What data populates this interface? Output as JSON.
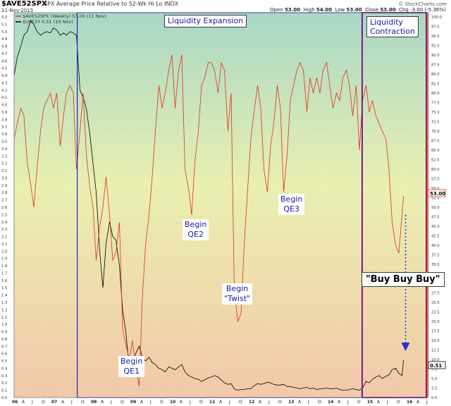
{
  "header": {
    "ticker": "$AVE52SPX",
    "description": "SPX Average Price Relative to 52-Wk Hi Lo INDX",
    "date": "11-Nov-2015",
    "open_label": "Open",
    "open": "53.00",
    "high_label": "High",
    "high": "54.00",
    "low_label": "Low",
    "low": "53.00",
    "close_label": "Close",
    "close": "53.00",
    "chg_label": "Chg",
    "chg": "-3.00 (-5.36%)",
    "credit": "© StockCharts.com"
  },
  "legend": {
    "series1": "$AVE52SPX (Weekly) 53.00 (11 Nov)",
    "series2": "$UST1Y 0.51 (10 Nov)"
  },
  "annotations": {
    "expansion": "Liquidity Expansion",
    "contraction_line1": "Liquidity",
    "contraction_line2": "Contraction",
    "buy": "\"Buy Buy Buy\"",
    "qe1_l1": "Begin",
    "qe1_l2": "QE1",
    "qe2_l1": "Begin",
    "qe2_l2": "QE2",
    "twist_l1": "Begin",
    "twist_l2": "\"Twist\"",
    "qe3_l1": "Begin",
    "qe3_l2": "QE3"
  },
  "price_labels": {
    "red": "53.00",
    "black": "0.51"
  },
  "colors": {
    "ave52spx": "#e0301e",
    "ust1y": "#000000",
    "expansion_border": "#2222cc",
    "contraction_border": "#7a1a8a",
    "right_border": "#e02020",
    "arrow": "#2233cc"
  },
  "chart_data": {
    "type": "line",
    "x_ticks": [
      "06",
      "A",
      "J",
      "O",
      "07",
      "A",
      "J",
      "O",
      "08",
      "A",
      "J",
      "O",
      "09",
      "A",
      "J",
      "O",
      "10",
      "A",
      "J",
      "O",
      "11",
      "A",
      "J",
      "O",
      "12",
      "A",
      "J",
      "O",
      "13",
      "A",
      "J",
      "O",
      "14",
      "A",
      "J",
      "O",
      "15",
      "A",
      "J",
      "O",
      "16",
      "A",
      "J"
    ],
    "left_axis": {
      "min": 0,
      "max": 5.2,
      "step": 0.1
    },
    "right_axis": {
      "min": 0,
      "max": 100,
      "step": 2.5
    },
    "series": [
      {
        "name": "$AVE52SPX (Weekly)",
        "axis": "right",
        "points": [
          [
            2006.0,
            68
          ],
          [
            2006.08,
            72
          ],
          [
            2006.17,
            76
          ],
          [
            2006.25,
            74
          ],
          [
            2006.33,
            62
          ],
          [
            2006.42,
            56
          ],
          [
            2006.5,
            50
          ],
          [
            2006.58,
            60
          ],
          [
            2006.67,
            70
          ],
          [
            2006.75,
            76
          ],
          [
            2006.83,
            78
          ],
          [
            2006.92,
            80
          ],
          [
            2007.0,
            76
          ],
          [
            2007.08,
            80
          ],
          [
            2007.17,
            66
          ],
          [
            2007.25,
            74
          ],
          [
            2007.33,
            80
          ],
          [
            2007.42,
            82
          ],
          [
            2007.5,
            80
          ],
          [
            2007.58,
            60
          ],
          [
            2007.67,
            70
          ],
          [
            2007.75,
            80
          ],
          [
            2007.83,
            64
          ],
          [
            2007.92,
            55
          ],
          [
            2008.0,
            50
          ],
          [
            2008.08,
            36
          ],
          [
            2008.17,
            45
          ],
          [
            2008.25,
            50
          ],
          [
            2008.33,
            58
          ],
          [
            2008.42,
            48
          ],
          [
            2008.5,
            36
          ],
          [
            2008.58,
            38
          ],
          [
            2008.67,
            46
          ],
          [
            2008.75,
            18
          ],
          [
            2008.83,
            14
          ],
          [
            2008.92,
            10
          ],
          [
            2009.0,
            15
          ],
          [
            2009.08,
            8
          ],
          [
            2009.17,
            3
          ],
          [
            2009.25,
            26
          ],
          [
            2009.33,
            40
          ],
          [
            2009.42,
            48
          ],
          [
            2009.5,
            58
          ],
          [
            2009.58,
            70
          ],
          [
            2009.67,
            82
          ],
          [
            2009.75,
            76
          ],
          [
            2009.83,
            80
          ],
          [
            2009.92,
            86
          ],
          [
            2010.0,
            90
          ],
          [
            2010.08,
            76
          ],
          [
            2010.17,
            86
          ],
          [
            2010.25,
            90
          ],
          [
            2010.33,
            60
          ],
          [
            2010.42,
            55
          ],
          [
            2010.5,
            48
          ],
          [
            2010.58,
            62
          ],
          [
            2010.67,
            70
          ],
          [
            2010.75,
            82
          ],
          [
            2010.83,
            84
          ],
          [
            2010.92,
            88
          ],
          [
            2011.0,
            88
          ],
          [
            2011.08,
            86
          ],
          [
            2011.17,
            80
          ],
          [
            2011.25,
            88
          ],
          [
            2011.33,
            86
          ],
          [
            2011.42,
            70
          ],
          [
            2011.5,
            80
          ],
          [
            2011.58,
            28
          ],
          [
            2011.67,
            20
          ],
          [
            2011.75,
            22
          ],
          [
            2011.83,
            40
          ],
          [
            2011.92,
            55
          ],
          [
            2012.0,
            68
          ],
          [
            2012.08,
            75
          ],
          [
            2012.17,
            82
          ],
          [
            2012.25,
            76
          ],
          [
            2012.33,
            60
          ],
          [
            2012.42,
            54
          ],
          [
            2012.5,
            66
          ],
          [
            2012.58,
            72
          ],
          [
            2012.67,
            82
          ],
          [
            2012.75,
            76
          ],
          [
            2012.83,
            54
          ],
          [
            2012.92,
            64
          ],
          [
            2013.0,
            78
          ],
          [
            2013.08,
            82
          ],
          [
            2013.17,
            86
          ],
          [
            2013.25,
            88
          ],
          [
            2013.33,
            86
          ],
          [
            2013.42,
            75
          ],
          [
            2013.5,
            84
          ],
          [
            2013.58,
            80
          ],
          [
            2013.67,
            84
          ],
          [
            2013.75,
            80
          ],
          [
            2013.83,
            86
          ],
          [
            2013.92,
            88
          ],
          [
            2014.0,
            82
          ],
          [
            2014.08,
            76
          ],
          [
            2014.17,
            80
          ],
          [
            2014.25,
            78
          ],
          [
            2014.33,
            84
          ],
          [
            2014.42,
            86
          ],
          [
            2014.5,
            82
          ],
          [
            2014.58,
            74
          ],
          [
            2014.67,
            82
          ],
          [
            2014.75,
            65
          ],
          [
            2014.83,
            78
          ],
          [
            2014.92,
            82
          ],
          [
            2015.0,
            75
          ],
          [
            2015.08,
            78
          ],
          [
            2015.17,
            74
          ],
          [
            2015.25,
            72
          ],
          [
            2015.33,
            70
          ],
          [
            2015.42,
            68
          ],
          [
            2015.5,
            60
          ],
          [
            2015.58,
            46
          ],
          [
            2015.67,
            40
          ],
          [
            2015.75,
            38
          ],
          [
            2015.83,
            48
          ],
          [
            2015.87,
            53
          ]
        ]
      },
      {
        "name": "$UST1Y",
        "axis": "left",
        "points": [
          [
            2006.0,
            4.4
          ],
          [
            2006.08,
            4.65
          ],
          [
            2006.17,
            4.8
          ],
          [
            2006.25,
            4.95
          ],
          [
            2006.33,
            5.0
          ],
          [
            2006.42,
            5.15
          ],
          [
            2006.5,
            5.1
          ],
          [
            2006.58,
            5.0
          ],
          [
            2006.67,
            4.95
          ],
          [
            2006.75,
            4.98
          ],
          [
            2006.83,
            5.0
          ],
          [
            2006.92,
            4.98
          ],
          [
            2007.0,
            5.05
          ],
          [
            2007.08,
            5.02
          ],
          [
            2007.17,
            4.95
          ],
          [
            2007.25,
            4.98
          ],
          [
            2007.33,
            4.95
          ],
          [
            2007.42,
            5.0
          ],
          [
            2007.5,
            4.98
          ],
          [
            2007.58,
            4.95
          ],
          [
            2007.67,
            4.2
          ],
          [
            2007.75,
            4.1
          ],
          [
            2007.83,
            3.95
          ],
          [
            2007.92,
            3.6
          ],
          [
            2008.0,
            3.2
          ],
          [
            2008.08,
            2.8
          ],
          [
            2008.17,
            2.0
          ],
          [
            2008.25,
            1.5
          ],
          [
            2008.33,
            2.1
          ],
          [
            2008.42,
            2.4
          ],
          [
            2008.5,
            2.2
          ],
          [
            2008.58,
            2.15
          ],
          [
            2008.67,
            1.8
          ],
          [
            2008.75,
            1.2
          ],
          [
            2008.83,
            0.9
          ],
          [
            2008.92,
            0.4
          ],
          [
            2009.0,
            0.45
          ],
          [
            2009.08,
            0.6
          ],
          [
            2009.17,
            0.7
          ],
          [
            2009.25,
            0.55
          ],
          [
            2009.33,
            0.5
          ],
          [
            2009.42,
            0.55
          ],
          [
            2009.5,
            0.48
          ],
          [
            2009.58,
            0.45
          ],
          [
            2009.67,
            0.4
          ],
          [
            2009.75,
            0.38
          ],
          [
            2009.83,
            0.35
          ],
          [
            2009.92,
            0.42
          ],
          [
            2010.0,
            0.4
          ],
          [
            2010.08,
            0.38
          ],
          [
            2010.17,
            0.42
          ],
          [
            2010.25,
            0.45
          ],
          [
            2010.33,
            0.35
          ],
          [
            2010.42,
            0.3
          ],
          [
            2010.5,
            0.28
          ],
          [
            2010.58,
            0.26
          ],
          [
            2010.67,
            0.25
          ],
          [
            2010.75,
            0.22
          ],
          [
            2010.83,
            0.24
          ],
          [
            2010.92,
            0.27
          ],
          [
            2011.0,
            0.28
          ],
          [
            2011.08,
            0.3
          ],
          [
            2011.17,
            0.28
          ],
          [
            2011.25,
            0.24
          ],
          [
            2011.33,
            0.2
          ],
          [
            2011.42,
            0.18
          ],
          [
            2011.5,
            0.19
          ],
          [
            2011.58,
            0.12
          ],
          [
            2011.67,
            0.1
          ],
          [
            2011.75,
            0.11
          ],
          [
            2011.83,
            0.11
          ],
          [
            2011.92,
            0.12
          ],
          [
            2012.0,
            0.12
          ],
          [
            2012.08,
            0.16
          ],
          [
            2012.17,
            0.19
          ],
          [
            2012.25,
            0.18
          ],
          [
            2012.33,
            0.19
          ],
          [
            2012.42,
            0.21
          ],
          [
            2012.5,
            0.2
          ],
          [
            2012.58,
            0.18
          ],
          [
            2012.67,
            0.17
          ],
          [
            2012.75,
            0.17
          ],
          [
            2012.83,
            0.18
          ],
          [
            2012.92,
            0.15
          ],
          [
            2013.0,
            0.15
          ],
          [
            2013.08,
            0.14
          ],
          [
            2013.17,
            0.13
          ],
          [
            2013.25,
            0.12
          ],
          [
            2013.33,
            0.13
          ],
          [
            2013.42,
            0.14
          ],
          [
            2013.5,
            0.12
          ],
          [
            2013.58,
            0.13
          ],
          [
            2013.67,
            0.11
          ],
          [
            2013.75,
            0.12
          ],
          [
            2013.83,
            0.12
          ],
          [
            2013.92,
            0.13
          ],
          [
            2014.0,
            0.12
          ],
          [
            2014.08,
            0.12
          ],
          [
            2014.17,
            0.13
          ],
          [
            2014.25,
            0.11
          ],
          [
            2014.33,
            0.1
          ],
          [
            2014.42,
            0.1
          ],
          [
            2014.5,
            0.11
          ],
          [
            2014.58,
            0.12
          ],
          [
            2014.67,
            0.11
          ],
          [
            2014.75,
            0.1
          ],
          [
            2014.83,
            0.13
          ],
          [
            2014.92,
            0.22
          ],
          [
            2015.0,
            0.2
          ],
          [
            2015.08,
            0.25
          ],
          [
            2015.17,
            0.28
          ],
          [
            2015.25,
            0.3
          ],
          [
            2015.33,
            0.26
          ],
          [
            2015.42,
            0.29
          ],
          [
            2015.5,
            0.31
          ],
          [
            2015.58,
            0.38
          ],
          [
            2015.67,
            0.4
          ],
          [
            2015.75,
            0.33
          ],
          [
            2015.83,
            0.3
          ],
          [
            2015.87,
            0.51
          ]
        ]
      }
    ]
  }
}
